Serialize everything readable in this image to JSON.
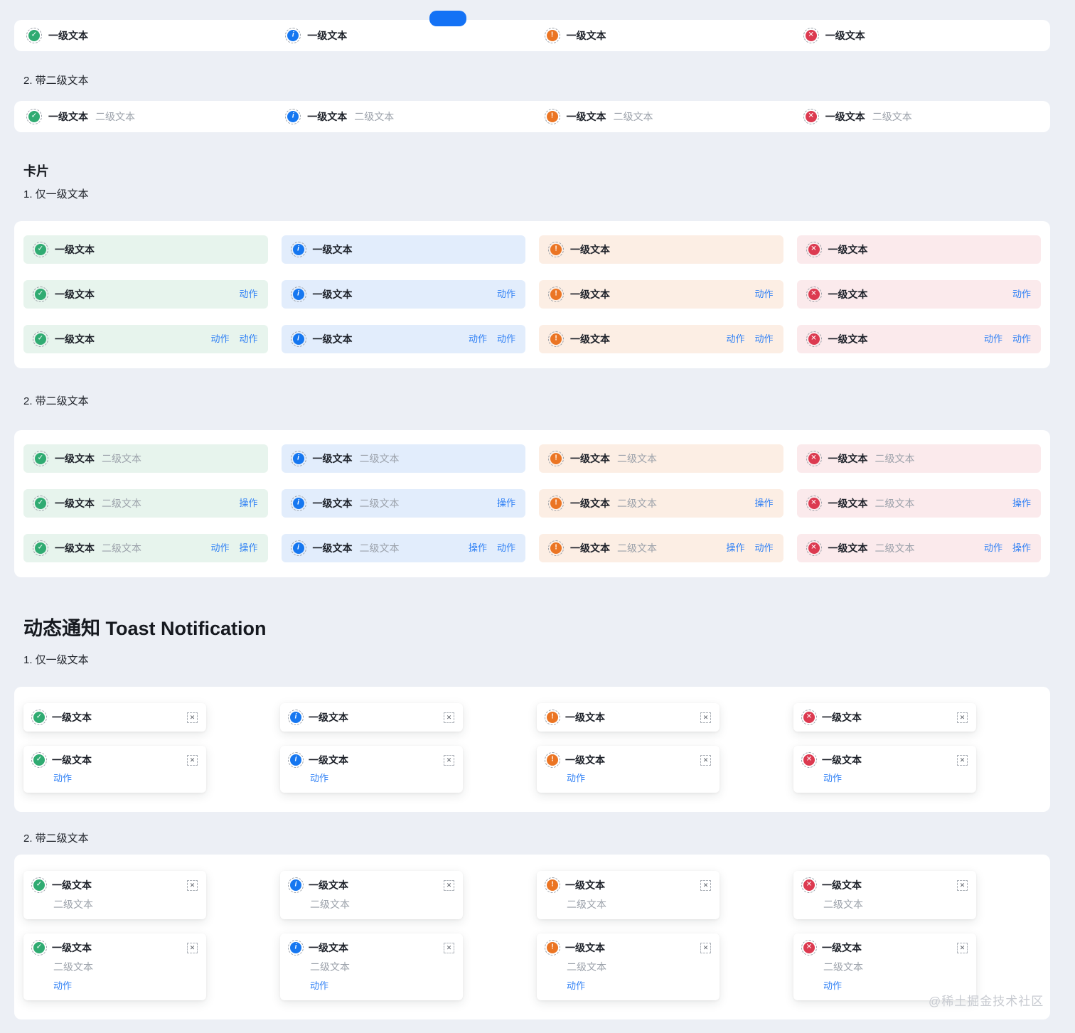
{
  "top_button": {
    "color": "#1472f5"
  },
  "watermark": "@稀土掘金技术社区",
  "text": {
    "primary": "一级文本",
    "secondary": "二级文本"
  },
  "action_color": "#2f80f5",
  "close_glyph": "✕",
  "statuses": {
    "success": {
      "icon": "check-circle-icon",
      "glyph": "✓",
      "color": "#30ab72",
      "card_bg": "#e7f4ed"
    },
    "info": {
      "icon": "info-circle-icon",
      "glyph": "i",
      "color": "#1677f0",
      "card_bg": "#e2edfc"
    },
    "warning": {
      "icon": "warning-circle-icon",
      "glyph": "!",
      "color": "#eb7524",
      "card_bg": "#fceee4"
    },
    "error": {
      "icon": "error-circle-icon",
      "glyph": "✕",
      "color": "#dc3a50",
      "card_bg": "#fbeaec"
    }
  },
  "headings": {
    "banner_secondary": "2. 带二级文本",
    "card": "卡片",
    "card_sub1": "1. 仅一级文本",
    "card_sub2": "2. 带二级文本",
    "toast": "动态通知 Toast Notification",
    "toast_sub1": "1. 仅一级文本",
    "toast_sub2": "2. 带二级文本"
  },
  "banners": {
    "plain": {
      "statuses": [
        "success",
        "info",
        "warning",
        "error"
      ],
      "secondary": false
    },
    "with_secondary": {
      "statuses": [
        "success",
        "info",
        "warning",
        "error"
      ],
      "secondary": true
    }
  },
  "card_grid_plain": {
    "with_secondary": false,
    "columns": [
      {
        "status": "success",
        "rows": [
          [],
          [
            "动作"
          ],
          [
            "动作",
            "动作"
          ]
        ]
      },
      {
        "status": "info",
        "rows": [
          [],
          [
            "动作"
          ],
          [
            "动作",
            "动作"
          ]
        ]
      },
      {
        "status": "warning",
        "rows": [
          [],
          [
            "动作"
          ],
          [
            "动作",
            "动作"
          ]
        ]
      },
      {
        "status": "error",
        "rows": [
          [],
          [
            "动作"
          ],
          [
            "动作",
            "动作"
          ]
        ]
      }
    ]
  },
  "card_grid_secondary": {
    "with_secondary": true,
    "columns": [
      {
        "status": "success",
        "rows": [
          [],
          [
            "操作"
          ],
          [
            "动作",
            "操作"
          ]
        ]
      },
      {
        "status": "info",
        "rows": [
          [],
          [
            "操作"
          ],
          [
            "操作",
            "动作"
          ]
        ]
      },
      {
        "status": "warning",
        "rows": [
          [],
          [
            "操作"
          ],
          [
            "操作",
            "动作"
          ]
        ]
      },
      {
        "status": "error",
        "rows": [
          [],
          [
            "操作"
          ],
          [
            "动作",
            "操作"
          ]
        ]
      }
    ]
  },
  "toast_grid_plain": {
    "statuses": [
      "success",
      "info",
      "warning",
      "error"
    ],
    "rows": [
      {
        "secondary": false,
        "actions": []
      },
      {
        "secondary": false,
        "actions": [
          "动作"
        ]
      }
    ]
  },
  "toast_grid_secondary": {
    "statuses": [
      "success",
      "info",
      "warning",
      "error"
    ],
    "rows": [
      {
        "secondary": true,
        "actions": []
      },
      {
        "secondary": true,
        "actions": [
          "动作"
        ]
      }
    ]
  }
}
